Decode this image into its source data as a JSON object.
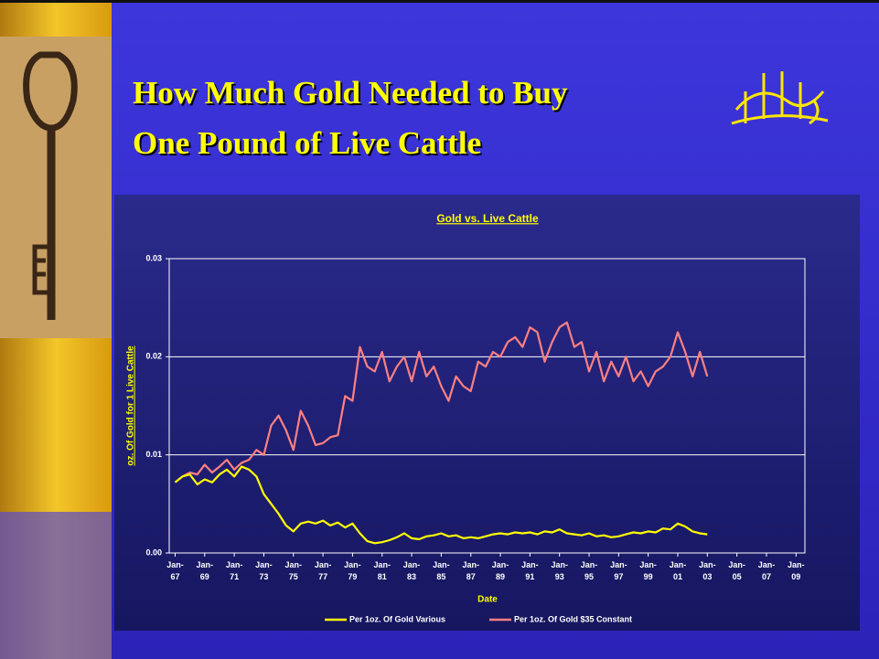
{
  "slide": {
    "title_lines": [
      "How Much Gold Needed to Buy",
      "One Pound of Live Cattle"
    ]
  },
  "chart_data": {
    "type": "line",
    "title": "Gold vs. Live Cattle",
    "xlabel": "Date",
    "ylabel": "oz. Of Gold for 1 Live Cattle",
    "xlim": [
      1966.6,
      2009.6
    ],
    "ylim": [
      0,
      0.03
    ],
    "yticks": [
      {
        "value": 0,
        "label": "0.00"
      },
      0.01,
      0.02,
      0.03
    ],
    "xticks": [
      {
        "value": 1967,
        "label": "Jan-67"
      },
      {
        "value": 1969,
        "label": "Jan-69"
      },
      {
        "value": 1971,
        "label": "Jan-71"
      },
      {
        "value": 1973,
        "label": "Jan-73"
      },
      {
        "value": 1975,
        "label": "Jan-75"
      },
      {
        "value": 1977,
        "label": "Jan-77"
      },
      {
        "value": 1979,
        "label": "Jan-79"
      },
      {
        "value": 1981,
        "label": "Jan-81"
      },
      {
        "value": 1983,
        "label": "Jan-83"
      },
      {
        "value": 1985,
        "label": "Jan-85"
      },
      {
        "value": 1987,
        "label": "Jan-87"
      },
      {
        "value": 1989,
        "label": "Jan-89"
      },
      {
        "value": 1991,
        "label": "Jan-91"
      },
      {
        "value": 1993,
        "label": "Jan-93"
      },
      {
        "value": 1995,
        "label": "Jan-95"
      },
      {
        "value": 1997,
        "label": "Jan-97"
      },
      {
        "value": 1999,
        "label": "Jan-99"
      },
      {
        "value": 2001,
        "label": "Jan-01"
      },
      {
        "value": 2003,
        "label": "Jan-03"
      },
      {
        "value": 2005,
        "label": "Jan-05"
      },
      {
        "value": 2007,
        "label": "Jan-07"
      },
      {
        "value": 2009,
        "label": "Jan-09"
      }
    ],
    "grid": true,
    "legend": "bottom",
    "x": [
      1967,
      1967.5,
      1968,
      1968.5,
      1969,
      1969.5,
      1970,
      1970.5,
      1971,
      1971.5,
      1972,
      1972.5,
      1973,
      1973.5,
      1974,
      1974.5,
      1975,
      1975.5,
      1976,
      1976.5,
      1977,
      1977.5,
      1978,
      1978.5,
      1979,
      1979.5,
      1980,
      1980.5,
      1981,
      1981.5,
      1982,
      1982.5,
      1983,
      1983.5,
      1984,
      1984.5,
      1985,
      1985.5,
      1986,
      1986.5,
      1987,
      1987.5,
      1988,
      1988.5,
      1989,
      1989.5,
      1990,
      1990.5,
      1991,
      1991.5,
      1992,
      1992.5,
      1993,
      1993.5,
      1994,
      1994.5,
      1995,
      1995.5,
      1996,
      1996.5,
      1997,
      1997.5,
      1998,
      1998.5,
      1999,
      1999.5,
      2000,
      2000.5,
      2001,
      2001.5,
      2002,
      2002.5,
      2003
    ],
    "series": [
      {
        "name": "Per 1oz. Of Gold Various",
        "color": "#ffff00",
        "values": [
          0.0072,
          0.0078,
          0.008,
          0.007,
          0.0075,
          0.0072,
          0.008,
          0.0085,
          0.0078,
          0.0088,
          0.0085,
          0.0078,
          0.006,
          0.005,
          0.004,
          0.0028,
          0.0022,
          0.003,
          0.0032,
          0.003,
          0.0033,
          0.0028,
          0.0031,
          0.0026,
          0.003,
          0.002,
          0.0012,
          0.001,
          0.0011,
          0.0013,
          0.0016,
          0.002,
          0.0015,
          0.0014,
          0.0017,
          0.0018,
          0.002,
          0.0017,
          0.0018,
          0.0015,
          0.0016,
          0.0015,
          0.0017,
          0.0019,
          0.002,
          0.0019,
          0.0021,
          0.002,
          0.0021,
          0.0019,
          0.0022,
          0.0021,
          0.0024,
          0.002,
          0.0019,
          0.0018,
          0.002,
          0.0017,
          0.0018,
          0.0016,
          0.0017,
          0.0019,
          0.0021,
          0.002,
          0.0022,
          0.0021,
          0.0025,
          0.0024,
          0.003,
          0.0027,
          0.0022,
          0.002,
          0.0019
        ]
      },
      {
        "name": "Per 1oz. Of Gold $35 Constant",
        "color": "#ff8080",
        "values": [
          0.0072,
          0.0078,
          0.0082,
          0.008,
          0.009,
          0.0082,
          0.0088,
          0.0095,
          0.0085,
          0.0092,
          0.0095,
          0.0105,
          0.01,
          0.013,
          0.014,
          0.0125,
          0.0105,
          0.0145,
          0.013,
          0.011,
          0.0112,
          0.0118,
          0.012,
          0.016,
          0.0155,
          0.021,
          0.019,
          0.0185,
          0.0205,
          0.0175,
          0.019,
          0.02,
          0.0175,
          0.0205,
          0.018,
          0.019,
          0.017,
          0.0155,
          0.018,
          0.017,
          0.0165,
          0.0195,
          0.019,
          0.0205,
          0.02,
          0.0215,
          0.022,
          0.021,
          0.023,
          0.0225,
          0.0195,
          0.0215,
          0.023,
          0.0235,
          0.021,
          0.0215,
          0.0185,
          0.0205,
          0.0175,
          0.0195,
          0.018,
          0.02,
          0.0175,
          0.0185,
          0.017,
          0.0185,
          0.019,
          0.02,
          0.0225,
          0.0205,
          0.018,
          0.0205,
          0.018
        ]
      }
    ]
  }
}
